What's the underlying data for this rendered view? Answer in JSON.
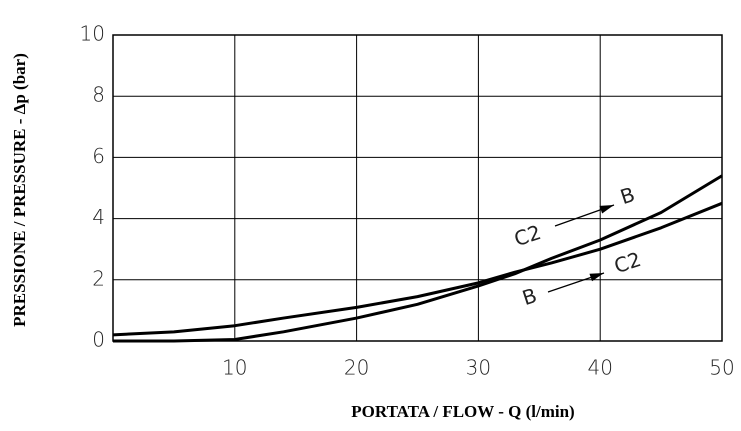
{
  "chart_data": {
    "type": "line",
    "x_label": "PORTATA / FLOW - Q (l/min)",
    "y_label": "PRESSIONE / PRESSURE -  Δp (bar)",
    "xlim": [
      0,
      50
    ],
    "ylim": [
      0,
      10
    ],
    "xticks": [
      10,
      20,
      30,
      40,
      50
    ],
    "yticks": [
      0,
      2,
      4,
      6,
      8,
      10
    ],
    "grid": true,
    "x": [
      0,
      5,
      10,
      14,
      20,
      25,
      30,
      33,
      36,
      40,
      45,
      50
    ],
    "series": [
      {
        "color": "#000",
        "values": [
          0,
          0,
          0.05,
          0.3,
          0.75,
          1.2,
          1.8,
          2.2,
          2.7,
          3.3,
          4.2,
          5.4
        ]
      },
      {
        "color": "#000",
        "values": [
          0.2,
          0.3,
          0.5,
          0.75,
          1.1,
          1.45,
          1.9,
          2.25,
          2.55,
          3.0,
          3.7,
          4.5
        ]
      }
    ],
    "annotations": [
      {
        "from": "C2",
        "to": "B"
      },
      {
        "from": "B",
        "to": "C2"
      }
    ]
  }
}
